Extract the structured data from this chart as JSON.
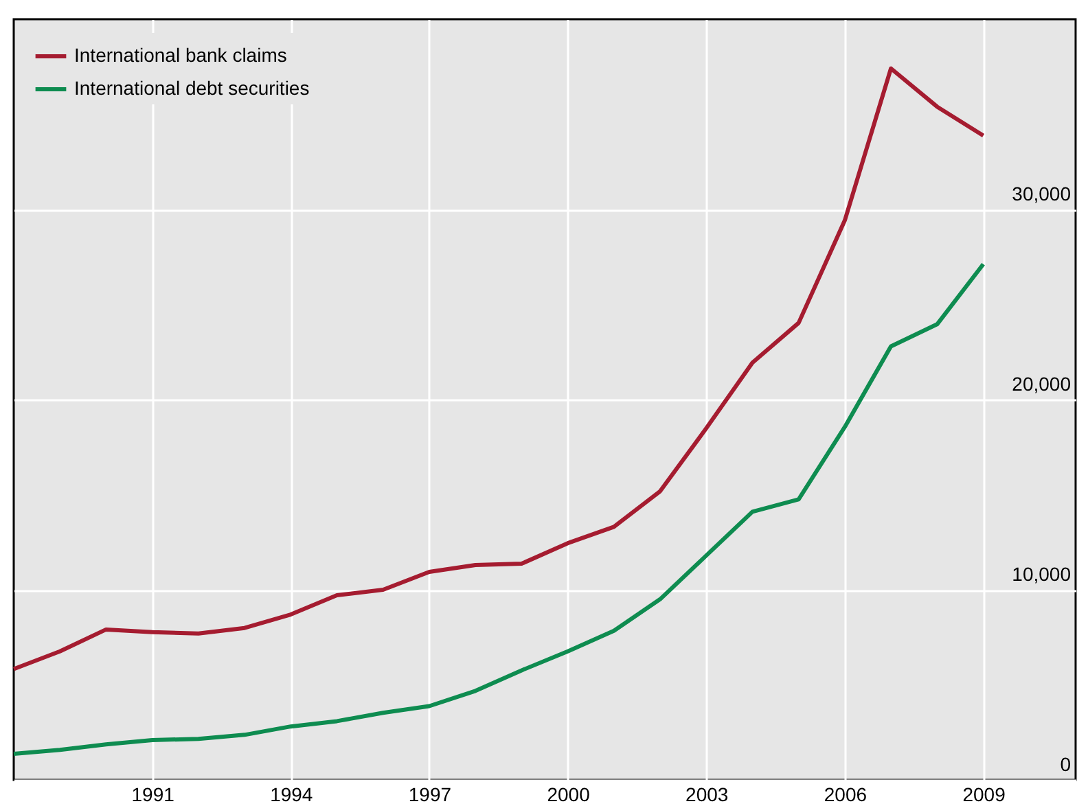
{
  "chart_data": {
    "type": "line",
    "x": [
      1988,
      1989,
      1990,
      1991,
      1992,
      1993,
      1994,
      1995,
      1996,
      1997,
      1998,
      1999,
      2000,
      2001,
      2002,
      2003,
      2004,
      2005,
      2006,
      2007,
      2008,
      2009
    ],
    "series": [
      {
        "name": "International bank claims",
        "color": "#a51c30",
        "values": [
          5830,
          6760,
          7910,
          7770,
          7700,
          7990,
          8700,
          9710,
          10000,
          10940,
          11300,
          11370,
          12450,
          13310,
          15180,
          18490,
          21940,
          24030,
          29420,
          37410,
          35400,
          33880
        ]
      },
      {
        "name": "International debt securities",
        "color": "#0e8c50",
        "values": [
          1370,
          1580,
          1870,
          2090,
          2160,
          2370,
          2810,
          3090,
          3530,
          3880,
          4680,
          5760,
          6760,
          7840,
          9500,
          11800,
          14100,
          14750,
          18560,
          22800,
          23960,
          27120
        ]
      }
    ],
    "xlim": [
      1988,
      2011
    ],
    "xticks": [
      1991,
      1994,
      1997,
      2000,
      2003,
      2006,
      2009
    ],
    "ylim": [
      0,
      40000
    ],
    "yticks": [
      0,
      {
        "value": 10000,
        "label": "10,000"
      },
      {
        "value": 20000,
        "label": "20,000"
      },
      {
        "value": 30000,
        "label": "30,000"
      }
    ],
    "grid": true,
    "legend": "top left",
    "marker": "none",
    "line_style": "solid"
  }
}
